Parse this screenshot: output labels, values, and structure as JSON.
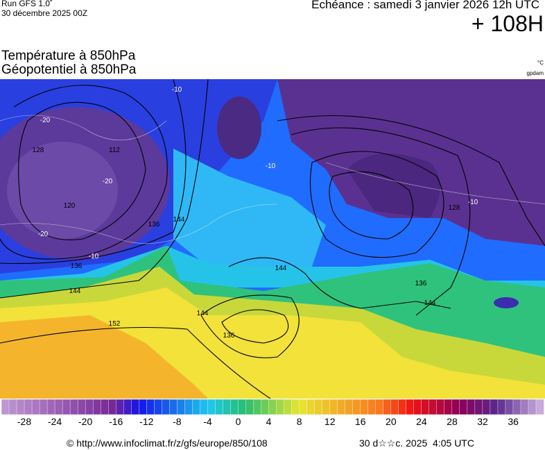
{
  "header": {
    "run": "Run GFS 1.0˚",
    "date": "30 décembre 2025 00Z",
    "valid": "Echéance : samedi 3 janvier 2026 12h UTC",
    "lead": "+ 108H"
  },
  "fields": {
    "temperature": "Température à 850hPa",
    "geopotential": "Géopotentiel à 850hPa",
    "temperature_unit": "°C",
    "geopotential_unit": "gpdam"
  },
  "map": {
    "contour_labels": [
      "128",
      "120",
      "112",
      "136",
      "136",
      "144",
      "144",
      "152",
      "144",
      "136",
      "144",
      "136",
      "128",
      "144"
    ],
    "isotherm_labels": [
      "-20",
      "-20",
      "-20",
      "-10",
      "-10",
      "-10",
      "-10"
    ]
  },
  "colorbar": {
    "labels": [
      -28,
      -24,
      -20,
      -16,
      -12,
      -8,
      -4,
      0,
      4,
      8,
      12,
      16,
      20,
      24,
      28,
      32,
      36
    ]
  },
  "footer": {
    "url": "© http://www.infoclimat.fr/z/gfs/europe/850/108",
    "generated": "30 d☆☆c. 2025  4:05 UTC"
  }
}
